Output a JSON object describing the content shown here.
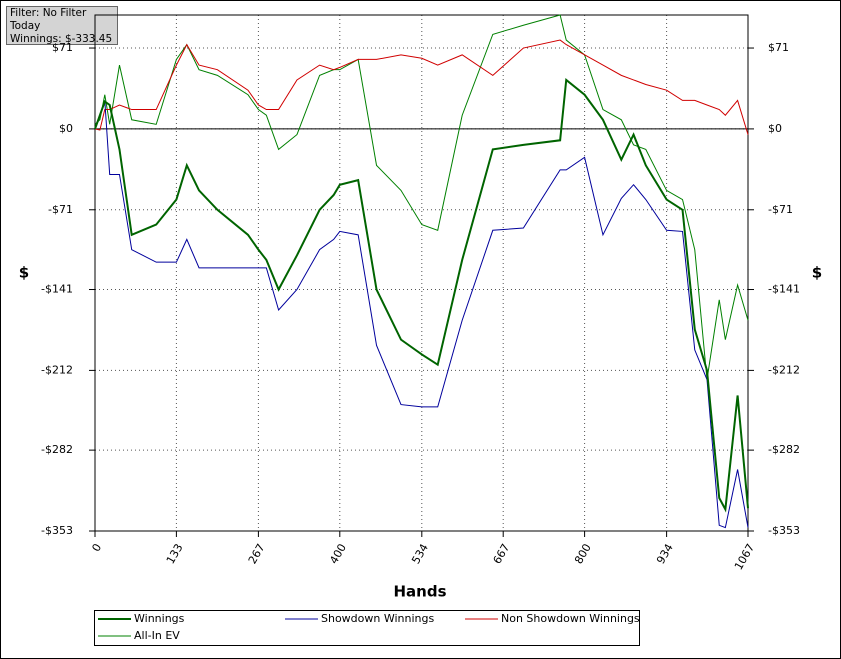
{
  "chart_data": {
    "type": "line",
    "annotations": [
      "Filter: No Filter",
      "Today",
      "Winnings: $-333.45"
    ],
    "x_label": "Hands",
    "y_label": "$",
    "y2_label": "$",
    "grid": true,
    "x": [
      0,
      8,
      16,
      24,
      40,
      60,
      100,
      133,
      150,
      170,
      200,
      250,
      267,
      280,
      300,
      330,
      367,
      390,
      400,
      430,
      460,
      500,
      534,
      560,
      600,
      650,
      700,
      760,
      770,
      800,
      830,
      860,
      880,
      900,
      934,
      960,
      980,
      1000,
      1020,
      1030,
      1050,
      1067
    ],
    "xlim": [
      0,
      1067
    ],
    "xticks": [
      0,
      133,
      267,
      400,
      534,
      667,
      800,
      934,
      1067
    ],
    "ylim": [
      -353,
      100
    ],
    "yticks": [
      {
        "value": -353,
        "label": "-$353"
      },
      {
        "value": -282,
        "label": "-$282"
      },
      {
        "value": -212,
        "label": "-$212"
      },
      {
        "value": -141,
        "label": "-$141"
      },
      {
        "value": -71,
        "label": "-$71"
      },
      {
        "value": 0,
        "label": "$0"
      },
      {
        "value": 71,
        "label": "$71"
      }
    ],
    "series": [
      {
        "name": "Winnings",
        "color": "#006400",
        "width": 2,
        "values": [
          0,
          12,
          24,
          21,
          -18,
          -93,
          -84,
          -62,
          -32,
          -54,
          -71,
          -93,
          -106,
          -115,
          -141,
          -111,
          -71,
          -58,
          -49,
          -45,
          -141,
          -185,
          -198,
          -207,
          -115,
          -18,
          -14,
          -10,
          43,
          30,
          8,
          -27,
          -5,
          -32,
          -62,
          -71,
          -176,
          -212,
          -324,
          -334,
          -234,
          -333
        ]
      },
      {
        "name": "Showdown Winnings",
        "color": "#00009c",
        "width": 1,
        "values": [
          0,
          12,
          25,
          -40,
          -40,
          -106,
          -117,
          -117,
          -97,
          -122,
          -122,
          -122,
          -122,
          -122,
          -159,
          -141,
          -106,
          -97,
          -90,
          -93,
          -190,
          -242,
          -244,
          -244,
          -168,
          -89,
          -87,
          -36,
          -36,
          -25,
          -93,
          -61,
          -49,
          -62,
          -89,
          -90,
          -194,
          -220,
          -348,
          -350,
          -299,
          -350
        ]
      },
      {
        "name": "Non Showdown Winnings",
        "color": "#d00000",
        "width": 1,
        "values": [
          0,
          -1,
          17,
          17,
          21,
          17,
          17,
          56,
          74,
          56,
          52,
          34,
          21,
          17,
          17,
          43,
          56,
          52,
          54,
          61,
          61,
          65,
          62,
          56,
          65,
          47,
          71,
          78,
          74,
          65,
          56,
          47,
          43,
          39,
          34,
          25,
          25,
          21,
          17,
          12,
          25,
          -5
        ]
      },
      {
        "name": "All-In EV",
        "color": "#008000",
        "width": 1,
        "values": [
          4,
          8,
          30,
          4,
          56,
          8,
          4,
          61,
          74,
          52,
          47,
          30,
          17,
          12,
          -18,
          -5,
          47,
          52,
          52,
          61,
          -32,
          -54,
          -84,
          -89,
          12,
          83,
          91,
          100,
          78,
          65,
          17,
          8,
          -14,
          -18,
          -54,
          -62,
          -106,
          -220,
          -150,
          -185,
          -137,
          -168
        ]
      }
    ]
  }
}
